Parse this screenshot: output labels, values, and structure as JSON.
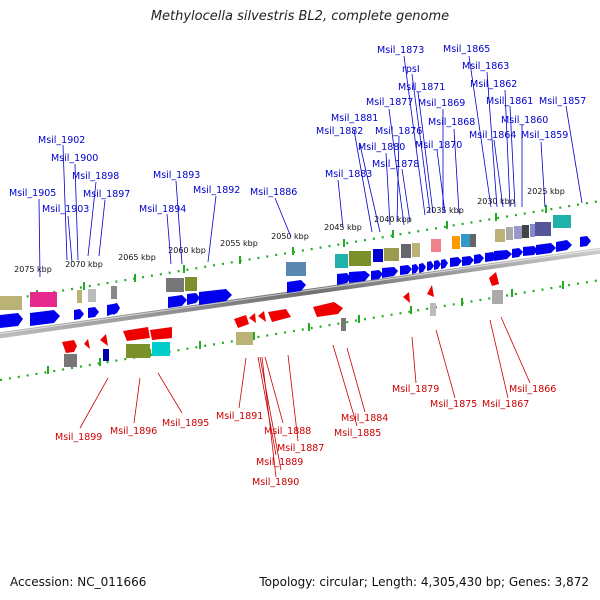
{
  "title": "Methylocella silvestris BL2, complete genome",
  "footer": {
    "accession": "Accession: NC_011666",
    "stats": "Topology: circular; Length: 4,305,430 bp; Genes: 3,872"
  },
  "colors": {
    "forward_label": "#0000cc",
    "reverse_label": "#cc0000",
    "forward_arrow": "#0000ee",
    "reverse_arrow": "#ee0000",
    "backbone": "#888888",
    "ruler_dots": "#22aa22"
  },
  "kbp_marks": [
    "2025 kbp",
    "2030 kbp",
    "2035 kbp",
    "2040 kbp",
    "2045 kbp",
    "2050 kbp",
    "2055 kbp",
    "2060 kbp",
    "2065 kbp",
    "2070 kbp",
    "2075 kbp"
  ],
  "forward_genes": [
    "Msil_1873",
    "Msil_1865",
    "rpsI",
    "Msil_1863",
    "Msil_1871",
    "Msil_1862",
    "Msil_1877",
    "Msil_1869",
    "Msil_1861",
    "Msil_1857",
    "Msil_1881",
    "Msil_1868",
    "Msil_1860",
    "Msil_1882",
    "Msil_1876",
    "Msil_1864",
    "Msil_1859",
    "Msil_1902",
    "Msil_1880",
    "Msil_1870",
    "Msil_1900",
    "Msil_1878",
    "Msil_1898",
    "Msil_1893",
    "Msil_1883",
    "Msil_1905",
    "Msil_1897",
    "Msil_1892",
    "Msil_1886",
    "Msil_1903",
    "Msil_1894"
  ],
  "reverse_genes": [
    "Msil_1879",
    "Msil_1866",
    "Msil_1875",
    "Msil_1867",
    "Msil_1899",
    "Msil_1896",
    "Msil_1895",
    "Msil_1891",
    "Msil_1884",
    "Msil_1888",
    "Msil_1885",
    "Msil_1887",
    "Msil_1889",
    "Msil_1890"
  ]
}
